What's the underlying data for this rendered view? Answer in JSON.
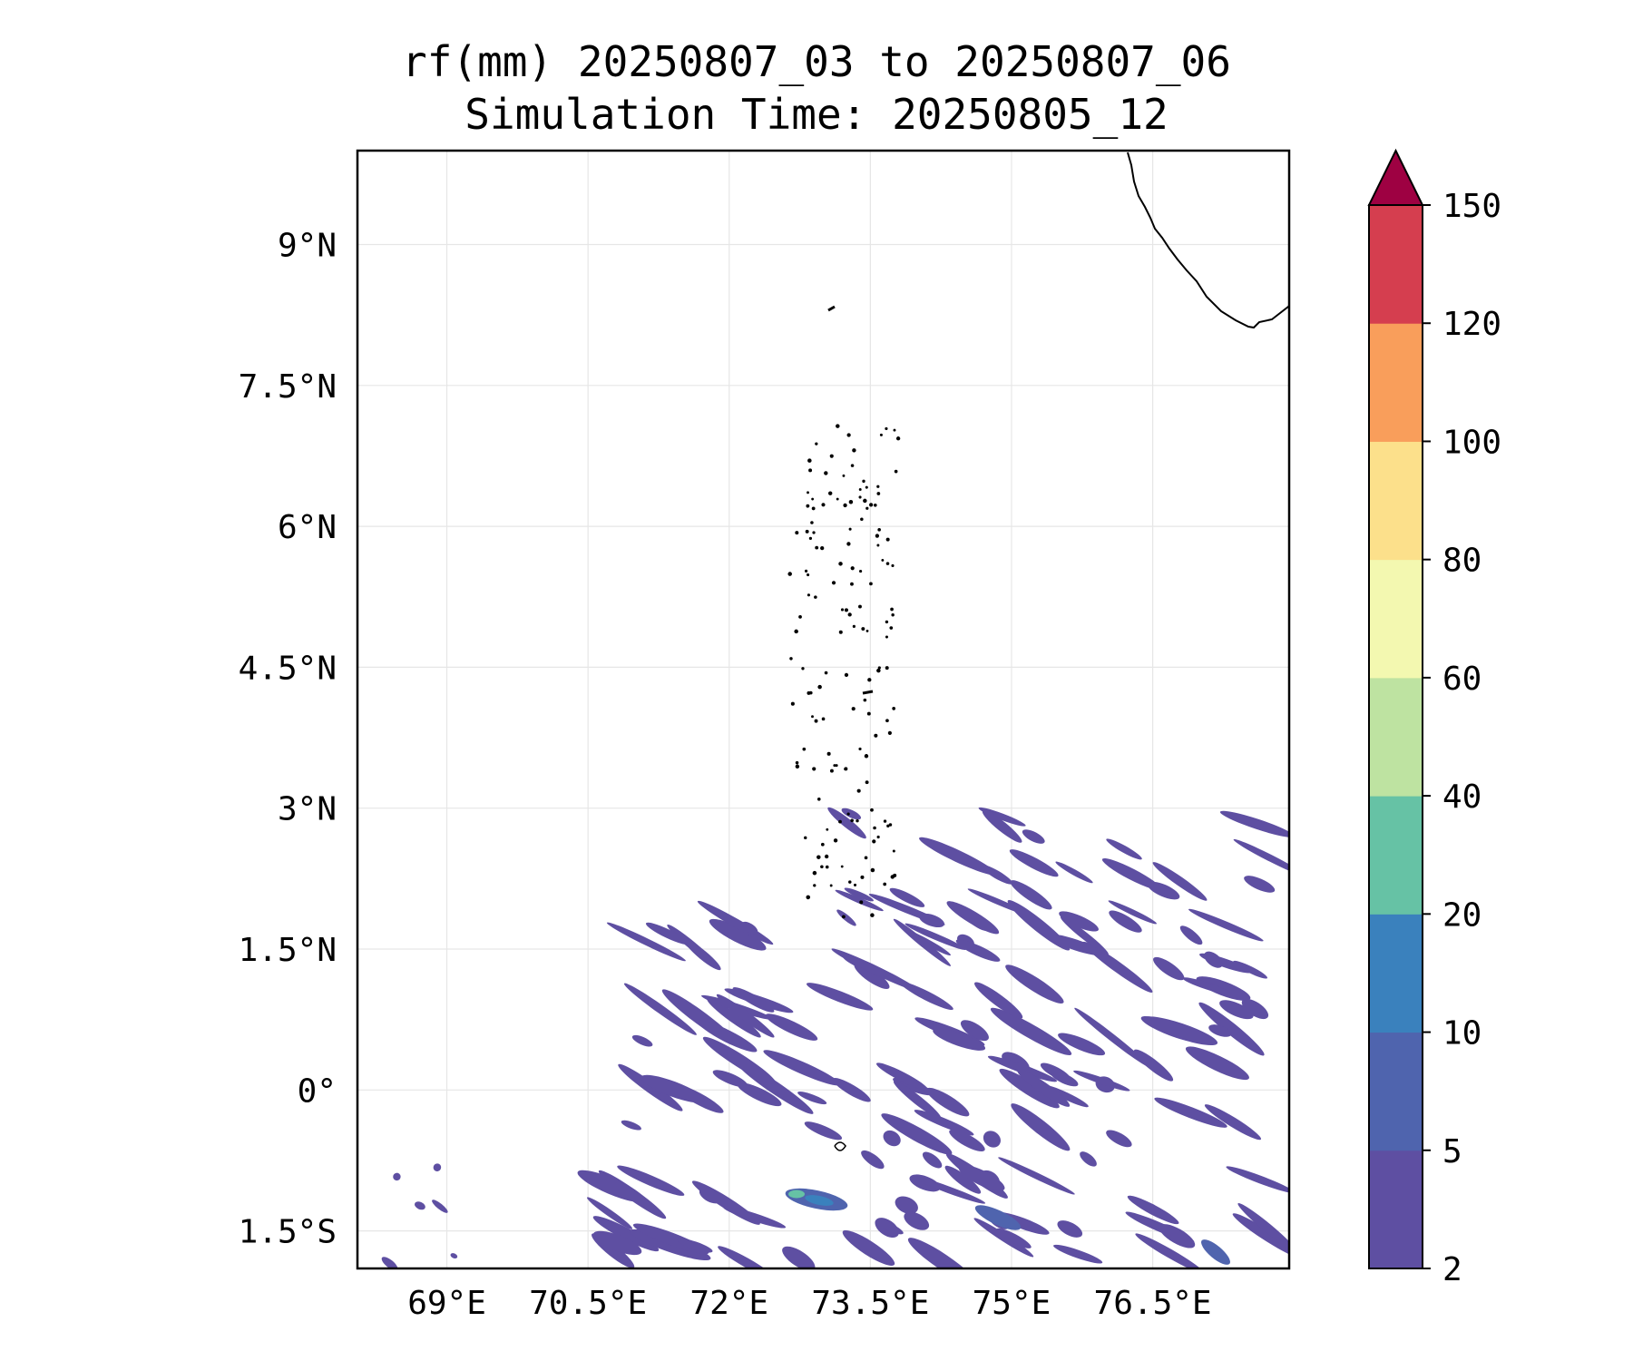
{
  "title": {
    "line1": "rf(mm) 20250807_03 to 20250807_06",
    "line2": "Simulation Time: 20250805_12"
  },
  "map": {
    "region": "Arabian Sea / Maldives",
    "lon_range": [
      68.05,
      77.95
    ],
    "lat_range": [
      -1.9,
      10
    ],
    "x_ticks": [
      {
        "value": 69,
        "label": "69°E"
      },
      {
        "value": 70.5,
        "label": "70.5°E"
      },
      {
        "value": 72,
        "label": "72°E"
      },
      {
        "value": 73.5,
        "label": "73.5°E"
      },
      {
        "value": 75,
        "label": "75°E"
      },
      {
        "value": 76.5,
        "label": "76.5°E"
      }
    ],
    "y_ticks": [
      {
        "value": 9,
        "label": "9°N"
      },
      {
        "value": 7.5,
        "label": "7.5°N"
      },
      {
        "value": 6,
        "label": "6°N"
      },
      {
        "value": 4.5,
        "label": "4.5°N"
      },
      {
        "value": 3,
        "label": "3°N"
      },
      {
        "value": 1.5,
        "label": "1.5°N"
      },
      {
        "value": 0,
        "label": "0°"
      },
      {
        "value": -1.5,
        "label": "1.5°S"
      }
    ],
    "grid": true,
    "coastline": "southern tip of India (top-right)",
    "rain_field_note": "scattered light rain streaks mostly south of 3°N; local maxima near 72.7°E 1.2°S"
  },
  "colorbar": {
    "levels": [
      "2",
      "5",
      "10",
      "20",
      "40",
      "60",
      "80",
      "100",
      "120",
      "150"
    ],
    "colors": [
      "#5e4fa2",
      "#4f64ae",
      "#3a81bd",
      "#66c2a5",
      "#bee3a1",
      "#f3f8b0",
      "#fce08b",
      "#f99e5b",
      "#d53e4f",
      "#9e0142"
    ],
    "extend": "max",
    "extend_color": "#9e0142",
    "position": "right"
  }
}
